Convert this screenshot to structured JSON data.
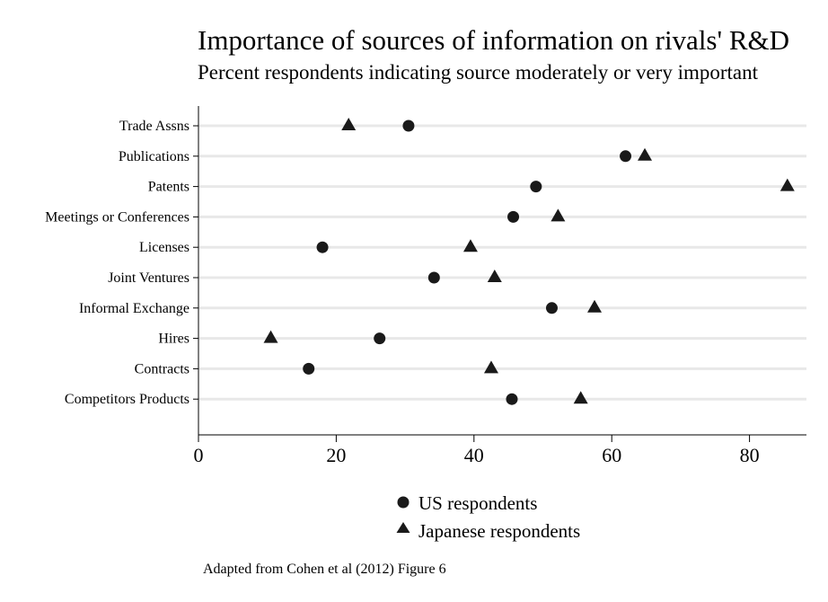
{
  "chart_data": {
    "type": "scatter",
    "orientation": "horizontal-dot-plot",
    "title": "Importance of sources of information on rivals' R&D",
    "subtitle": "Percent respondents indicating source moderately or very important",
    "categories": [
      "Trade Assns",
      "Publications",
      "Patents",
      "Meetings or Conferences",
      "Licenses",
      "Joint Ventures",
      "Informal Exchange",
      "Hires",
      "Contracts",
      "Competitors Products"
    ],
    "series": [
      {
        "name": "US respondents",
        "marker": "circle",
        "values": [
          30.5,
          62,
          49,
          45.7,
          18,
          34.2,
          51.3,
          26.3,
          16,
          45.5
        ]
      },
      {
        "name": "Japanese respondents",
        "marker": "triangle",
        "values": [
          21.8,
          64.8,
          85.5,
          52.2,
          39.5,
          43,
          57.5,
          10.5,
          42.5,
          55.5
        ]
      }
    ],
    "xlim": [
      0,
      88
    ],
    "xticks": [
      "0",
      "20",
      "40",
      "60",
      "80"
    ],
    "grid": true,
    "legend_position": "bottom-center"
  },
  "note": "Adapted from Cohen et al (2012) Figure 6",
  "colors": {
    "marker": "#1a1a1a",
    "grid": "#e8e8e8",
    "axis": "#000000"
  }
}
